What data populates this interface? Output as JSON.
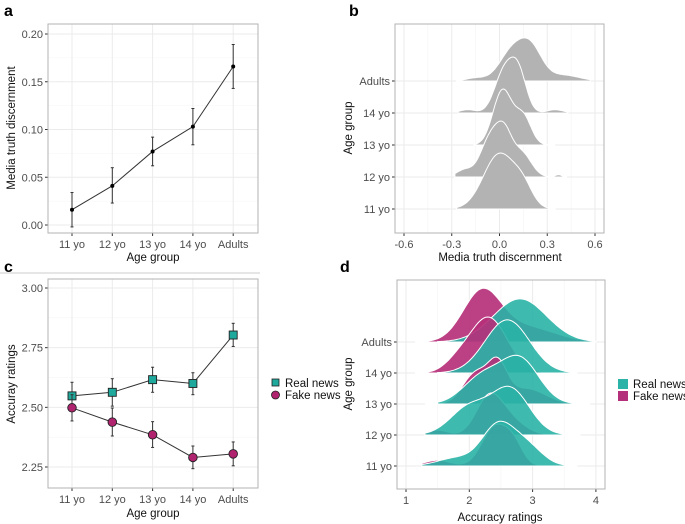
{
  "chart_data": [
    {
      "panel": "a",
      "type": "line",
      "categories": [
        "11 yo",
        "12 yo",
        "13 yo",
        "14 yo",
        "Adults"
      ],
      "values": [
        0.016,
        0.041,
        0.077,
        0.103,
        0.166
      ],
      "error_low": [
        -0.002,
        0.023,
        0.062,
        0.084,
        0.143
      ],
      "error_high": [
        0.034,
        0.06,
        0.092,
        0.122,
        0.189
      ],
      "xlabel": "Age group",
      "ylabel": "Media truth discernment",
      "ylim": [
        -0.007,
        0.2
      ],
      "yticks": [
        "0.00",
        "0.05",
        "0.10",
        "0.15",
        "0.20"
      ],
      "grid": true
    },
    {
      "panel": "b",
      "type": "area",
      "subtype": "ridgeline density",
      "categories": [
        "11 yo",
        "12 yo",
        "13 yo",
        "14 yo",
        "Adults"
      ],
      "xlabel": "Media truth discernment",
      "ylabel": "Age group",
      "xlim": [
        -0.65,
        0.65
      ],
      "xticks": [
        "-0.6",
        "-0.3",
        "0.0",
        "0.3",
        "0.6"
      ],
      "color": "#b3b3b3",
      "densities": [
        {
          "group": "11 yo",
          "range": [
            -0.27,
            0.35
          ],
          "relative_peak": 1.0,
          "components": [
            [
              0.0,
              0.1,
              1
            ],
            [
              0.15,
              0.06,
              0.3
            ]
          ]
        },
        {
          "group": "12 yo",
          "range": [
            -0.28,
            0.42
          ],
          "relative_peak": 1.0,
          "components": [
            [
              -0.06,
              0.06,
              0.8
            ],
            [
              0.03,
              0.05,
              0.8
            ],
            [
              0.14,
              0.06,
              0.5
            ],
            [
              -0.22,
              0.05,
              0.15
            ],
            [
              0.37,
              0.02,
              0.05
            ]
          ]
        },
        {
          "group": "13 yo",
          "range": [
            -0.16,
            0.35
          ],
          "relative_peak": 1.0,
          "components": [
            [
              0.02,
              0.06,
              1
            ],
            [
              0.15,
              0.05,
              0.5
            ]
          ]
        },
        {
          "group": "14 yo",
          "range": [
            -0.26,
            0.43
          ],
          "relative_peak": 1.0,
          "components": [
            [
              0.03,
              0.06,
              1
            ],
            [
              0.12,
              0.05,
              0.9
            ],
            [
              -0.2,
              0.05,
              0.08
            ],
            [
              0.35,
              0.05,
              0.08
            ]
          ]
        },
        {
          "group": "Adults",
          "range": [
            -0.27,
            0.57
          ],
          "relative_peak": 0.77,
          "components": [
            [
              0.08,
              0.08,
              1
            ],
            [
              0.2,
              0.07,
              1
            ],
            [
              0.4,
              0.1,
              0.2
            ],
            [
              -0.15,
              0.06,
              0.1
            ]
          ]
        }
      ],
      "grid": true
    },
    {
      "panel": "c",
      "type": "line",
      "categories": [
        "11 yo",
        "12 yo",
        "13 yo",
        "14 yo",
        "Adults"
      ],
      "xlabel": "Age group",
      "ylabel": "Accuray ratings",
      "ylim": [
        2.19,
        3.03
      ],
      "yticks": [
        "2.25",
        "2.50",
        "2.75",
        "3.00"
      ],
      "legend": "right",
      "series": [
        {
          "name": "Real news",
          "marker": "square",
          "color": "#1fa89c",
          "values": [
            2.548,
            2.563,
            2.616,
            2.6,
            2.803
          ],
          "error_low": [
            2.49,
            2.505,
            2.563,
            2.553,
            2.755
          ],
          "error_high": [
            2.605,
            2.62,
            2.668,
            2.645,
            2.852
          ]
        },
        {
          "name": "Fake news",
          "marker": "circle",
          "color": "#b0236f",
          "values": [
            2.498,
            2.438,
            2.385,
            2.29,
            2.305
          ],
          "error_low": [
            2.443,
            2.38,
            2.332,
            2.243,
            2.255
          ],
          "error_high": [
            2.553,
            2.497,
            2.44,
            2.338,
            2.355
          ]
        }
      ],
      "grid": true
    },
    {
      "panel": "d",
      "type": "area",
      "subtype": "ridgeline density",
      "categories": [
        "11 yo",
        "12 yo",
        "13 yo",
        "14 yo",
        "Adults"
      ],
      "xlabel": "Accuracy ratings",
      "ylabel": "Age group",
      "xlim": [
        0.85,
        4.15
      ],
      "xticks": [
        "1",
        "2",
        "3",
        "4"
      ],
      "legend": "right",
      "series": [
        {
          "name": "Real news",
          "color": "#2ab3a6",
          "densities": [
            {
              "group": "11 yo",
              "range": [
                1.25,
                3.7
              ],
              "relative_peak": 0.8,
              "components": [
                [
                  2.45,
                  0.25,
                  1
                ],
                [
                  2.9,
                  0.25,
                  0.5
                ],
                [
                  1.8,
                  0.3,
                  0.2
                ]
              ]
            },
            {
              "group": "12 yo",
              "range": [
                1.3,
                3.75
              ],
              "relative_peak": 0.87,
              "components": [
                [
                  2.65,
                  0.3,
                  1
                ],
                [
                  2.0,
                  0.3,
                  0.6
                ]
              ]
            },
            {
              "group": "13 yo",
              "range": [
                1.5,
                3.9
              ],
              "relative_peak": 0.87,
              "components": [
                [
                  2.8,
                  0.3,
                  1
                ],
                [
                  2.2,
                  0.3,
                  0.6
                ]
              ]
            },
            {
              "group": "14 yo",
              "range": [
                1.5,
                3.7
              ],
              "relative_peak": 0.95,
              "components": [
                [
                  2.6,
                  0.35,
                  1
                ]
              ]
            },
            {
              "group": "Adults",
              "range": [
                1.5,
                4.0
              ],
              "relative_peak": 0.77,
              "components": [
                [
                  2.8,
                  0.42,
                  1
                ]
              ]
            }
          ]
        },
        {
          "name": "Fake news",
          "color": "#b5307a",
          "densities": [
            {
              "group": "11 yo",
              "range": [
                1.25,
                3.7
              ],
              "relative_peak": 0.75,
              "components": [
                [
                  2.4,
                  0.2,
                  1
                ],
                [
                  2.7,
                  0.15,
                  0.5
                ],
                [
                  1.5,
                  0.2,
                  0.15
                ]
              ]
            },
            {
              "group": "12 yo",
              "range": [
                1.3,
                3.6
              ],
              "relative_peak": 0.75,
              "components": [
                [
                  2.3,
                  0.2,
                  1
                ],
                [
                  2.6,
                  0.25,
                  0.5
                ],
                [
                  1.5,
                  0.15,
                  0.15
                ]
              ]
            },
            {
              "group": "13 yo",
              "range": [
                1.3,
                3.8
              ],
              "relative_peak": 0.84,
              "components": [
                [
                  2.45,
                  0.15,
                  0.8
                ],
                [
                  2.1,
                  0.2,
                  0.7
                ],
                [
                  2.9,
                  0.3,
                  0.35
                ]
              ]
            },
            {
              "group": "14 yo",
              "range": [
                1.15,
                3.6
              ],
              "relative_peak": 1.0,
              "components": [
                [
                  2.3,
                  0.3,
                  1
                ],
                [
                  1.8,
                  0.2,
                  0.15
                ]
              ]
            },
            {
              "group": "Adults",
              "range": [
                1.15,
                4.0
              ],
              "relative_peak": 0.96,
              "components": [
                [
                  2.2,
                  0.3,
                  1
                ],
                [
                  2.9,
                  0.45,
                  0.3
                ]
              ]
            }
          ]
        }
      ],
      "grid": true
    }
  ]
}
